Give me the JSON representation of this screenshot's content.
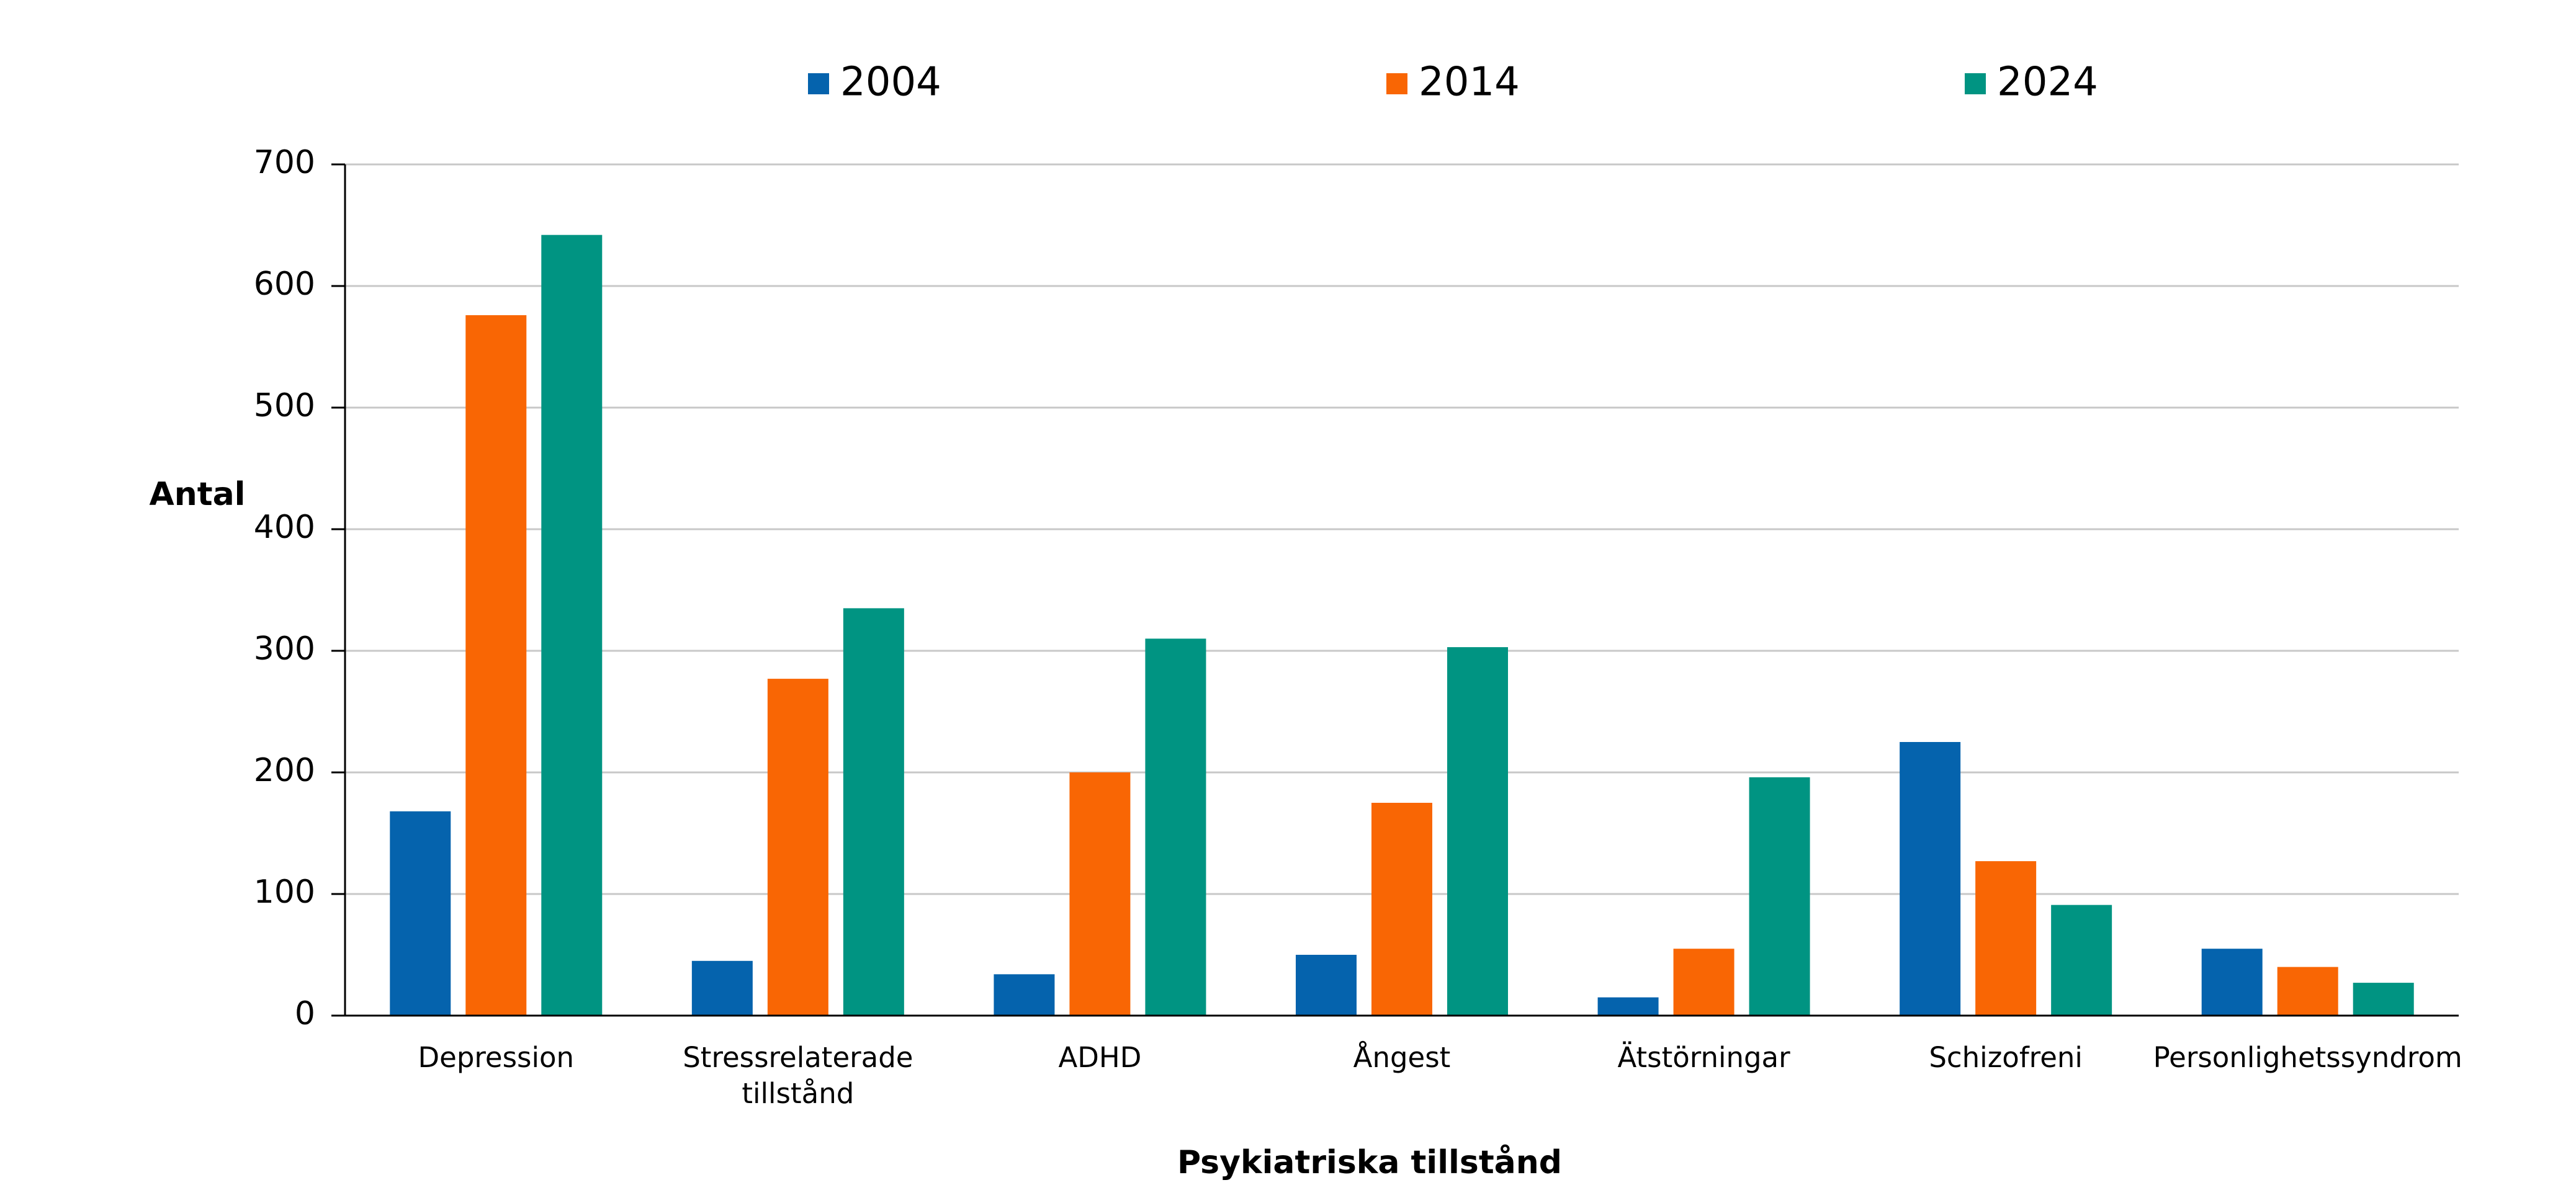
{
  "chart_data": {
    "type": "bar",
    "title": "",
    "xlabel": "Psykiatriska tillstånd",
    "ylabel": "Antal",
    "ylim": [
      0,
      700
    ],
    "yticks": [
      0,
      100,
      200,
      300,
      400,
      500,
      600,
      700
    ],
    "grid": true,
    "legend_position": "top",
    "categories": [
      [
        "Depression"
      ],
      [
        "Stressrelaterade",
        "tillstånd"
      ],
      [
        "ADHD"
      ],
      [
        "Ångest"
      ],
      [
        "Ätstörningar"
      ],
      [
        "Schizofreni"
      ],
      [
        "Personlighetssyndrom"
      ]
    ],
    "series": [
      {
        "name": "2004",
        "color": "#0563ad",
        "values": [
          168,
          45,
          34,
          50,
          15,
          225,
          55
        ]
      },
      {
        "name": "2014",
        "color": "#f96604",
        "values": [
          576,
          277,
          200,
          175,
          55,
          127,
          40
        ]
      },
      {
        "name": "2024",
        "color": "#009482",
        "values": [
          642,
          335,
          310,
          303,
          196,
          91,
          27
        ]
      }
    ]
  }
}
